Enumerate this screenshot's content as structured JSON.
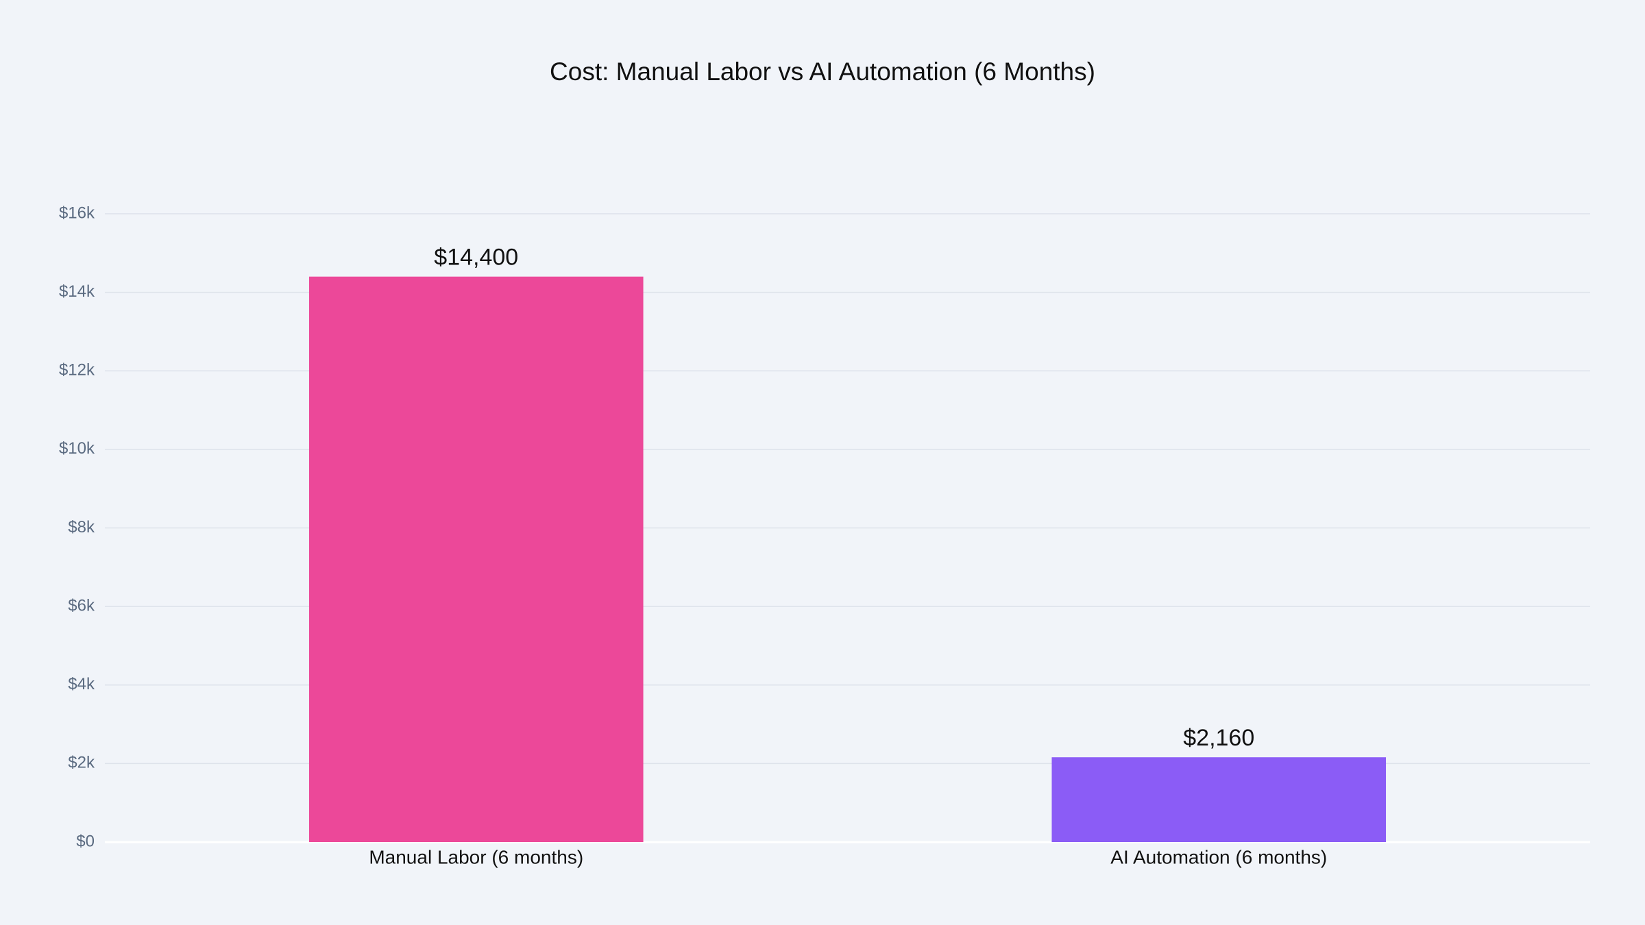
{
  "chart_data": {
    "type": "bar",
    "title": "Cost: Manual Labor vs AI Automation (6 Months)",
    "categories": [
      "Manual Labor (6 months)",
      "AI Automation (6 months)"
    ],
    "values": [
      14400,
      2160
    ],
    "value_labels": [
      "$14,400",
      "$2,160"
    ],
    "colors": [
      "#ec4899",
      "#8b5cf6"
    ],
    "ylim": [
      0,
      16000
    ],
    "yticks": [
      {
        "value": 0,
        "label": "$0"
      },
      {
        "value": 2000,
        "label": "$2k"
      },
      {
        "value": 4000,
        "label": "$4k"
      },
      {
        "value": 6000,
        "label": "$6k"
      },
      {
        "value": 8000,
        "label": "$8k"
      },
      {
        "value": 10000,
        "label": "$10k"
      },
      {
        "value": 12000,
        "label": "$12k"
      },
      {
        "value": 14000,
        "label": "$14k"
      },
      {
        "value": 16000,
        "label": "$16k"
      }
    ],
    "grid": true
  }
}
